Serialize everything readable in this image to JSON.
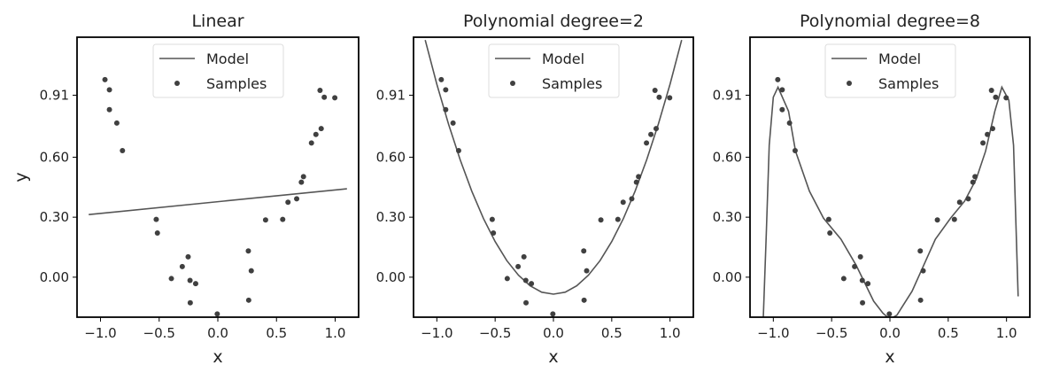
{
  "chart_data": [
    {
      "type": "scatter+line",
      "title": "Linear",
      "xlabel": "x",
      "ylabel": "y",
      "xlim": [
        -1.2,
        1.2
      ],
      "ylim": [
        -0.2,
        1.2
      ],
      "xticks": [
        -1.0,
        -0.5,
        0.0,
        0.5,
        1.0
      ],
      "xtick_labels": [
        "−1.0",
        "−0.5",
        "0.0",
        "0.5",
        "1.0"
      ],
      "yticks": [
        0.0,
        0.3,
        0.6,
        0.91
      ],
      "ytick_labels": [
        "0.00",
        "0.30",
        "0.60",
        "0.91"
      ],
      "legend": {
        "position": "top-center",
        "entries": [
          "Model",
          "Samples"
        ]
      },
      "model": {
        "x": [
          -1.1,
          1.1
        ],
        "y": [
          0.313,
          0.442
        ]
      }
    },
    {
      "type": "scatter+line",
      "title": "Polynomial degree=2",
      "xlabel": "x",
      "ylabel": "",
      "xlim": [
        -1.2,
        1.2
      ],
      "ylim": [
        -0.2,
        1.2
      ],
      "xticks": [
        -1.0,
        -0.5,
        0.0,
        0.5,
        1.0
      ],
      "xtick_labels": [
        "−1.0",
        "−0.5",
        "0.0",
        "0.5",
        "1.0"
      ],
      "yticks": [
        0.0,
        0.3,
        0.6,
        0.91
      ],
      "ytick_labels": [
        "0.00",
        "0.30",
        "0.60",
        "0.91"
      ],
      "legend": {
        "position": "top-center",
        "entries": [
          "Model",
          "Samples"
        ]
      },
      "model": {
        "x": [
          -1.1,
          -1.0,
          -0.9,
          -0.8,
          -0.7,
          -0.6,
          -0.5,
          -0.4,
          -0.3,
          -0.2,
          -0.1,
          0,
          0.1,
          0.2,
          0.3,
          0.4,
          0.5,
          0.6,
          0.7,
          0.8,
          0.9,
          1.0,
          1.1
        ],
        "y": [
          1.186,
          0.965,
          0.766,
          0.587,
          0.43,
          0.293,
          0.178,
          0.083,
          0.01,
          -0.043,
          -0.075,
          -0.085,
          -0.075,
          -0.043,
          0.01,
          0.083,
          0.178,
          0.293,
          0.43,
          0.587,
          0.766,
          0.965,
          1.186
        ]
      }
    },
    {
      "type": "scatter+line",
      "title": "Polynomial degree=8",
      "xlabel": "x",
      "ylabel": "",
      "xlim": [
        -1.2,
        1.2
      ],
      "ylim": [
        -0.2,
        1.2
      ],
      "xticks": [
        -1.0,
        -0.5,
        0.0,
        0.5,
        1.0
      ],
      "xtick_labels": [
        "−1.0",
        "−0.5",
        "0.0",
        "0.5",
        "1.0"
      ],
      "yticks": [
        0.0,
        0.3,
        0.6,
        0.91
      ],
      "ytick_labels": [
        "0.00",
        "0.30",
        "0.60",
        "0.91"
      ],
      "legend": {
        "position": "top-center",
        "entries": [
          "Model",
          "Samples"
        ]
      },
      "model": {
        "x": [
          -1.1,
          -1.085,
          -1.06,
          -1.035,
          -1.0,
          -0.96,
          -0.87,
          -0.81,
          -0.69,
          -0.57,
          -0.42,
          -0.29,
          -0.14,
          -0.06,
          0.0,
          0.06,
          0.19,
          0.29,
          0.39,
          0.52,
          0.64,
          0.74,
          0.82,
          0.9,
          0.96,
          1.02,
          1.06,
          1.1
        ],
        "y": [
          -0.45,
          -0.19,
          0.22,
          0.66,
          0.9,
          0.95,
          0.83,
          0.63,
          0.43,
          0.295,
          0.19,
          0.06,
          -0.12,
          -0.18,
          -0.21,
          -0.19,
          -0.07,
          0.06,
          0.19,
          0.295,
          0.38,
          0.49,
          0.63,
          0.83,
          0.95,
          0.885,
          0.66,
          -0.096
        ]
      }
    }
  ],
  "samples": {
    "x": [
      -0.962,
      -0.924,
      -0.924,
      -0.861,
      -0.813,
      -0.525,
      -0.515,
      -0.396,
      -0.303,
      -0.253,
      -0.237,
      -0.189,
      -0.235,
      -0.005,
      0.26,
      0.285,
      0.263,
      0.407,
      0.553,
      0.598,
      0.672,
      0.712,
      0.73,
      0.798,
      0.836,
      0.881,
      0.871,
      0.907,
      0.997
    ],
    "y": [
      0.988,
      0.937,
      0.838,
      0.771,
      0.633,
      0.289,
      0.221,
      -0.007,
      0.053,
      0.102,
      -0.016,
      -0.032,
      -0.128,
      -0.184,
      0.131,
      0.032,
      -0.115,
      0.286,
      0.289,
      0.375,
      0.392,
      0.475,
      0.503,
      0.671,
      0.714,
      0.743,
      0.934,
      0.9,
      0.897
    ]
  },
  "colors": {
    "model": "#555555",
    "samples": "#404040",
    "frame": "#000000"
  }
}
